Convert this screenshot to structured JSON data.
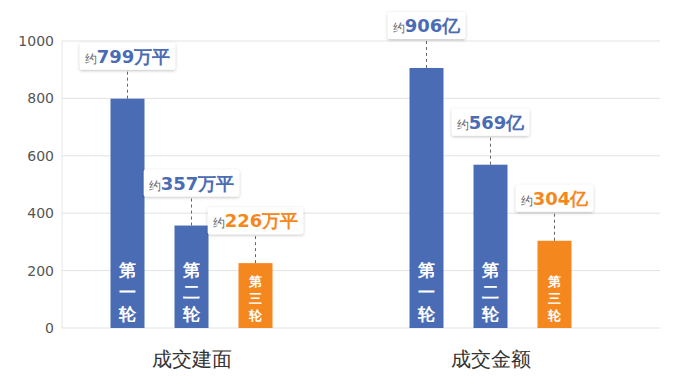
{
  "chart_data": {
    "type": "bar",
    "categories": [
      "成交建面",
      "成交金额"
    ],
    "series": [
      {
        "name": "第一轮",
        "color": "#4a6cb5",
        "values": [
          799,
          906
        ],
        "value_labels": [
          "约799万平",
          "约906亿"
        ]
      },
      {
        "name": "第二轮",
        "color": "#4a6cb5",
        "values": [
          357,
          569
        ],
        "value_labels": [
          "约357万平",
          "约569亿"
        ]
      },
      {
        "name": "第三轮",
        "color": "#f5871f",
        "values": [
          226,
          304
        ],
        "value_labels": [
          "约226万平",
          "约304亿"
        ]
      }
    ],
    "ylim": [
      0,
      1000
    ],
    "yticks": [
      0,
      200,
      400,
      600,
      800,
      1000
    ],
    "grid": true,
    "data_labels": true
  }
}
